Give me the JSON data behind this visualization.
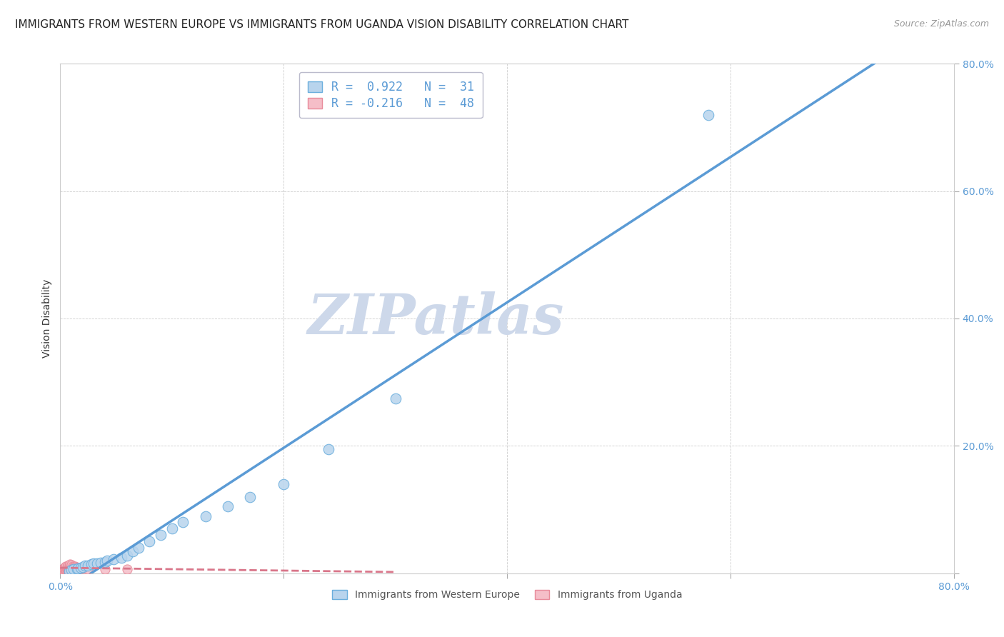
{
  "title": "IMMIGRANTS FROM WESTERN EUROPE VS IMMIGRANTS FROM UGANDA VISION DISABILITY CORRELATION CHART",
  "source": "Source: ZipAtlas.com",
  "ylabel": "Vision Disability",
  "xlim": [
    0,
    0.8
  ],
  "ylim": [
    0,
    0.8
  ],
  "xticks_major": [
    0.0,
    0.2,
    0.4,
    0.6,
    0.8
  ],
  "yticks_major": [
    0.0,
    0.2,
    0.4,
    0.6,
    0.8
  ],
  "legend_R1": "R =  0.922",
  "legend_N1": "N =  31",
  "legend_R2": "R = -0.216",
  "legend_N2": "N =  48",
  "legend_blue_text": "Immigrants from Western Europe",
  "legend_pink_text": "Immigrants from Uganda",
  "blue_fill": "#b8d4ed",
  "blue_edge": "#6aaedd",
  "blue_line": "#5b9bd5",
  "pink_fill": "#f5bec8",
  "pink_edge": "#e88a9a",
  "pink_line": "#d9768a",
  "legend_text_color": "#5b9bd5",
  "legend_R_color": "#333333",
  "tick_color": "#5b9bd5",
  "watermark": "ZIPatlas",
  "watermark_color": "#cdd8ea",
  "background": "#ffffff",
  "grid_color": "#cccccc",
  "title_fontsize": 11,
  "ylabel_fontsize": 10,
  "tick_fontsize": 10,
  "source_fontsize": 9,
  "blue_scatter_x": [
    0.008,
    0.01,
    0.012,
    0.015,
    0.016,
    0.018,
    0.02,
    0.022,
    0.025,
    0.028,
    0.03,
    0.033,
    0.036,
    0.04,
    0.042,
    0.048,
    0.055,
    0.06,
    0.065,
    0.07,
    0.08,
    0.09,
    0.1,
    0.11,
    0.13,
    0.15,
    0.17,
    0.2,
    0.24,
    0.3,
    0.58
  ],
  "blue_scatter_y": [
    0.003,
    0.005,
    0.006,
    0.007,
    0.008,
    0.009,
    0.01,
    0.012,
    0.012,
    0.014,
    0.015,
    0.016,
    0.017,
    0.018,
    0.02,
    0.022,
    0.025,
    0.028,
    0.035,
    0.04,
    0.05,
    0.06,
    0.07,
    0.08,
    0.09,
    0.105,
    0.12,
    0.14,
    0.195,
    0.275,
    0.72
  ],
  "pink_scatter_x": [
    0.002,
    0.002,
    0.003,
    0.003,
    0.004,
    0.004,
    0.004,
    0.005,
    0.005,
    0.005,
    0.005,
    0.006,
    0.006,
    0.006,
    0.007,
    0.007,
    0.007,
    0.007,
    0.008,
    0.008,
    0.008,
    0.008,
    0.009,
    0.009,
    0.009,
    0.009,
    0.009,
    0.01,
    0.01,
    0.01,
    0.01,
    0.011,
    0.011,
    0.011,
    0.012,
    0.012,
    0.013,
    0.013,
    0.013,
    0.014,
    0.014,
    0.015,
    0.016,
    0.018,
    0.02,
    0.025,
    0.04,
    0.06
  ],
  "pink_scatter_y": [
    0.004,
    0.006,
    0.005,
    0.008,
    0.006,
    0.008,
    0.01,
    0.005,
    0.007,
    0.009,
    0.011,
    0.006,
    0.008,
    0.01,
    0.006,
    0.008,
    0.01,
    0.012,
    0.006,
    0.008,
    0.01,
    0.012,
    0.006,
    0.008,
    0.01,
    0.012,
    0.014,
    0.007,
    0.009,
    0.011,
    0.013,
    0.007,
    0.009,
    0.011,
    0.008,
    0.01,
    0.007,
    0.009,
    0.011,
    0.008,
    0.01,
    0.009,
    0.008,
    0.008,
    0.008,
    0.007,
    0.007,
    0.006
  ]
}
